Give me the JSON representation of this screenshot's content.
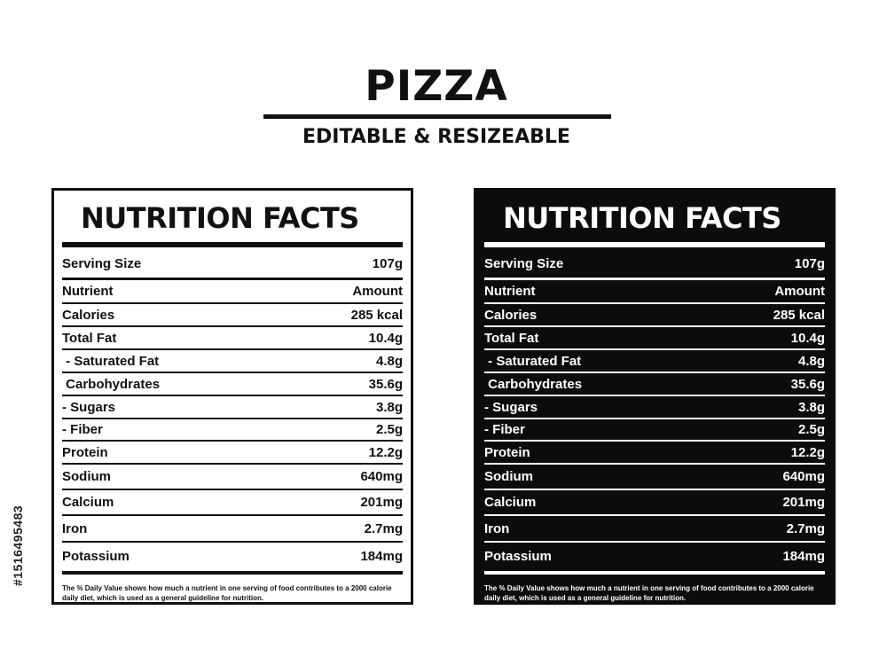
{
  "header": {
    "title": "PIZZA",
    "subtitle": "EDITABLE & RESIZEABLE"
  },
  "stock_id": "#1516495483",
  "labels": {
    "heading": "NUTRITION FACTS",
    "serving": {
      "label": "Serving Size",
      "value": "107g"
    },
    "rows": [
      {
        "label": "Nutrient",
        "value": "Amount"
      },
      {
        "label": "Calories",
        "value": "285 kcal"
      },
      {
        "label": "Total Fat",
        "value": "10.4g"
      },
      {
        "label": " - Saturated Fat",
        "value": "4.8g"
      },
      {
        "label": " Carbohydrates",
        "value": "35.6g"
      },
      {
        "label": "- Sugars",
        "value": "3.8g"
      },
      {
        "label": "- Fiber",
        "value": "2.5g"
      },
      {
        "label": "Protein",
        "value": "12.2g"
      },
      {
        "label": "Sodium",
        "value": "640mg"
      },
      {
        "label": "Calcium",
        "value": "201mg"
      },
      {
        "label": "Iron",
        "value": "2.7mg"
      },
      {
        "label": "Potassium",
        "value": "184mg"
      }
    ],
    "footnote": "The % Daily Value shows how much a nutrient in one serving of food contributes to a 2000 calorie daily diet, which is used as a general guideline for nutrition."
  },
  "colors": {
    "background": "#ffffff",
    "ink": "#111111",
    "dark_label_bg": "#0c0c0c",
    "dark_label_text": "#ffffff"
  }
}
